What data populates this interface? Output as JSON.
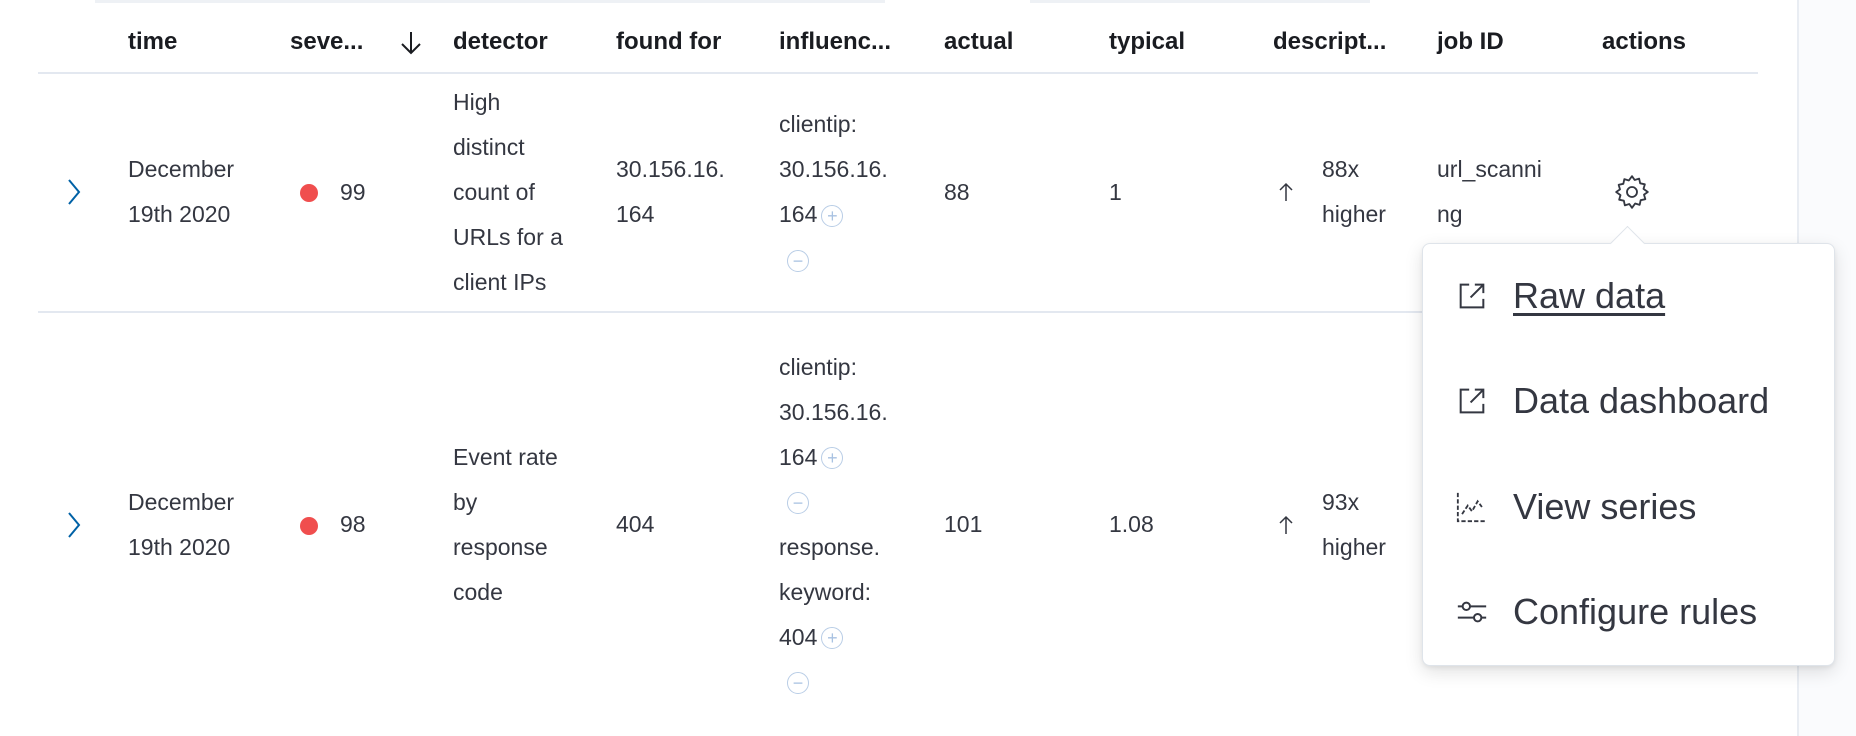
{
  "table": {
    "columns": [
      "time",
      "seve...",
      "detector",
      "found for",
      "influenc...",
      "actual",
      "typical",
      "descript...",
      "job ID",
      "actions"
    ],
    "sort": {
      "column": "severity",
      "direction": "descending",
      "icon": "arrow-down-icon"
    },
    "rows": [
      {
        "time": [
          "December",
          "19th 2020"
        ],
        "severity": "99",
        "severity_color": "#f04e4e",
        "detector": [
          "High",
          "distinct",
          "count of",
          "URLs for a",
          "client IPs"
        ],
        "found_for": [
          "30.156.16.",
          "164"
        ],
        "influencers": [
          {
            "name": "clientip:",
            "value": [
              "30.156.16.",
              "164"
            ]
          }
        ],
        "actual": "88",
        "typical": "1",
        "description": [
          "88x",
          "higher"
        ],
        "job_id": [
          "url_scanni",
          "ng"
        ]
      },
      {
        "time": [
          "December",
          "19th 2020"
        ],
        "severity": "98",
        "severity_color": "#f04e4e",
        "detector": [
          "Event rate",
          "by",
          "response",
          "code"
        ],
        "found_for": [
          "404"
        ],
        "influencers": [
          {
            "name": "clientip:",
            "value": [
              "30.156.16.",
              "164"
            ]
          },
          {
            "name": "response.",
            "value": [
              "keyword:",
              "404"
            ]
          }
        ],
        "actual": "101",
        "typical": "1.08",
        "description": [
          "93x",
          "higher"
        ],
        "job_id": []
      }
    ]
  },
  "actions_menu": {
    "items": [
      {
        "label": "Raw data",
        "icon": "external-link-icon"
      },
      {
        "label": "Data dashboard",
        "icon": "external-link-icon"
      },
      {
        "label": "View series",
        "icon": "chart-line-icon"
      },
      {
        "label": "Configure rules",
        "icon": "sliders-icon"
      }
    ]
  },
  "colors": {
    "accent": "#0061a6",
    "critical": "#f04e4e"
  }
}
